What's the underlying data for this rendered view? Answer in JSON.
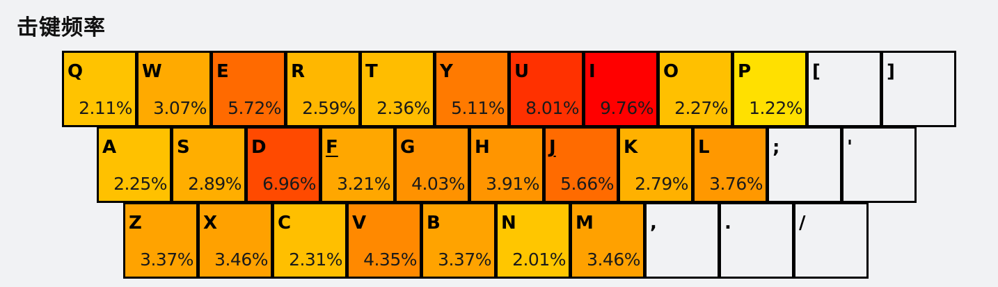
{
  "title": "击键频率",
  "rows": [
    [
      {
        "label": "Q",
        "freq": "2.11%",
        "color": "#FFC300"
      },
      {
        "label": "W",
        "freq": "3.07%",
        "color": "#FFAA00"
      },
      {
        "label": "E",
        "freq": "5.72%",
        "color": "#FF6A00"
      },
      {
        "label": "R",
        "freq": "2.59%",
        "color": "#FFB700"
      },
      {
        "label": "T",
        "freq": "2.36%",
        "color": "#FFBD00"
      },
      {
        "label": "Y",
        "freq": "5.11%",
        "color": "#FF7A00"
      },
      {
        "label": "U",
        "freq": "8.01%",
        "color": "#FF3100"
      },
      {
        "label": "I",
        "freq": "9.76%",
        "color": "#FF0000"
      },
      {
        "label": "O",
        "freq": "2.27%",
        "color": "#FFC000"
      },
      {
        "label": "P",
        "freq": "1.22%",
        "color": "#FFE000"
      },
      {
        "label": "[",
        "freq": "",
        "color": ""
      },
      {
        "label": "]",
        "freq": "",
        "color": ""
      }
    ],
    [
      {
        "label": "A",
        "freq": "2.25%",
        "color": "#FFC100"
      },
      {
        "label": "S",
        "freq": "2.89%",
        "color": "#FFAE00"
      },
      {
        "label": "D",
        "freq": "6.96%",
        "color": "#FF4A00"
      },
      {
        "label": "F",
        "freq": "3.21%",
        "color": "#FFA700",
        "underline": true
      },
      {
        "label": "G",
        "freq": "4.03%",
        "color": "#FF9200"
      },
      {
        "label": "H",
        "freq": "3.91%",
        "color": "#FF9500"
      },
      {
        "label": "J",
        "freq": "5.66%",
        "color": "#FF6B00",
        "underline": true
      },
      {
        "label": "K",
        "freq": "2.79%",
        "color": "#FFB100"
      },
      {
        "label": "L",
        "freq": "3.76%",
        "color": "#FF9800"
      },
      {
        "label": ";",
        "freq": "",
        "color": ""
      },
      {
        "label": "'",
        "freq": "",
        "color": ""
      }
    ],
    [
      {
        "label": "Z",
        "freq": "3.37%",
        "color": "#FFA300"
      },
      {
        "label": "X",
        "freq": "3.46%",
        "color": "#FFA100"
      },
      {
        "label": "C",
        "freq": "2.31%",
        "color": "#FFBF00"
      },
      {
        "label": "V",
        "freq": "4.35%",
        "color": "#FF8900"
      },
      {
        "label": "B",
        "freq": "3.37%",
        "color": "#FFA300"
      },
      {
        "label": "N",
        "freq": "2.01%",
        "color": "#FFC600"
      },
      {
        "label": "M",
        "freq": "3.46%",
        "color": "#FFA100"
      },
      {
        "label": ",",
        "freq": "",
        "color": ""
      },
      {
        "label": ".",
        "freq": "",
        "color": ""
      },
      {
        "label": "/",
        "freq": "",
        "color": ""
      }
    ]
  ]
}
